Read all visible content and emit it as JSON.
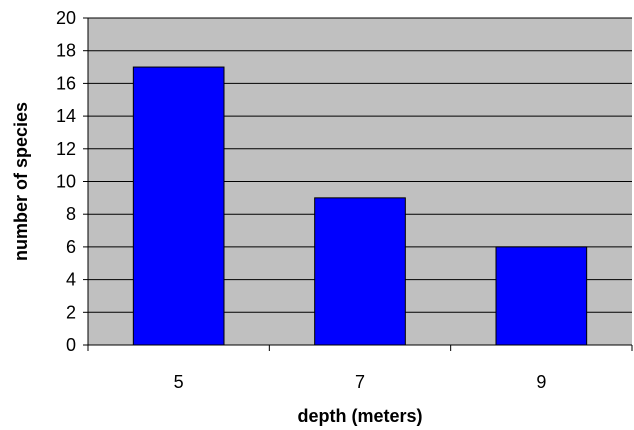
{
  "chart_data": {
    "type": "bar",
    "title": "",
    "xlabel": "depth (meters)",
    "ylabel": "number of species",
    "categories": [
      "5",
      "7",
      "9"
    ],
    "values": [
      17,
      9,
      6
    ],
    "ylim": [
      0,
      20
    ],
    "ytick_step": 2,
    "ytick_labels": [
      "0",
      "2",
      "4",
      "6",
      "8",
      "10",
      "12",
      "14",
      "16",
      "18",
      "20"
    ],
    "grid": true,
    "legend": "none",
    "colors": {
      "bar": "#0000ff",
      "bar_outline": "#000000",
      "plot_background": "#c0c0c0",
      "gridline": "#000000"
    }
  }
}
